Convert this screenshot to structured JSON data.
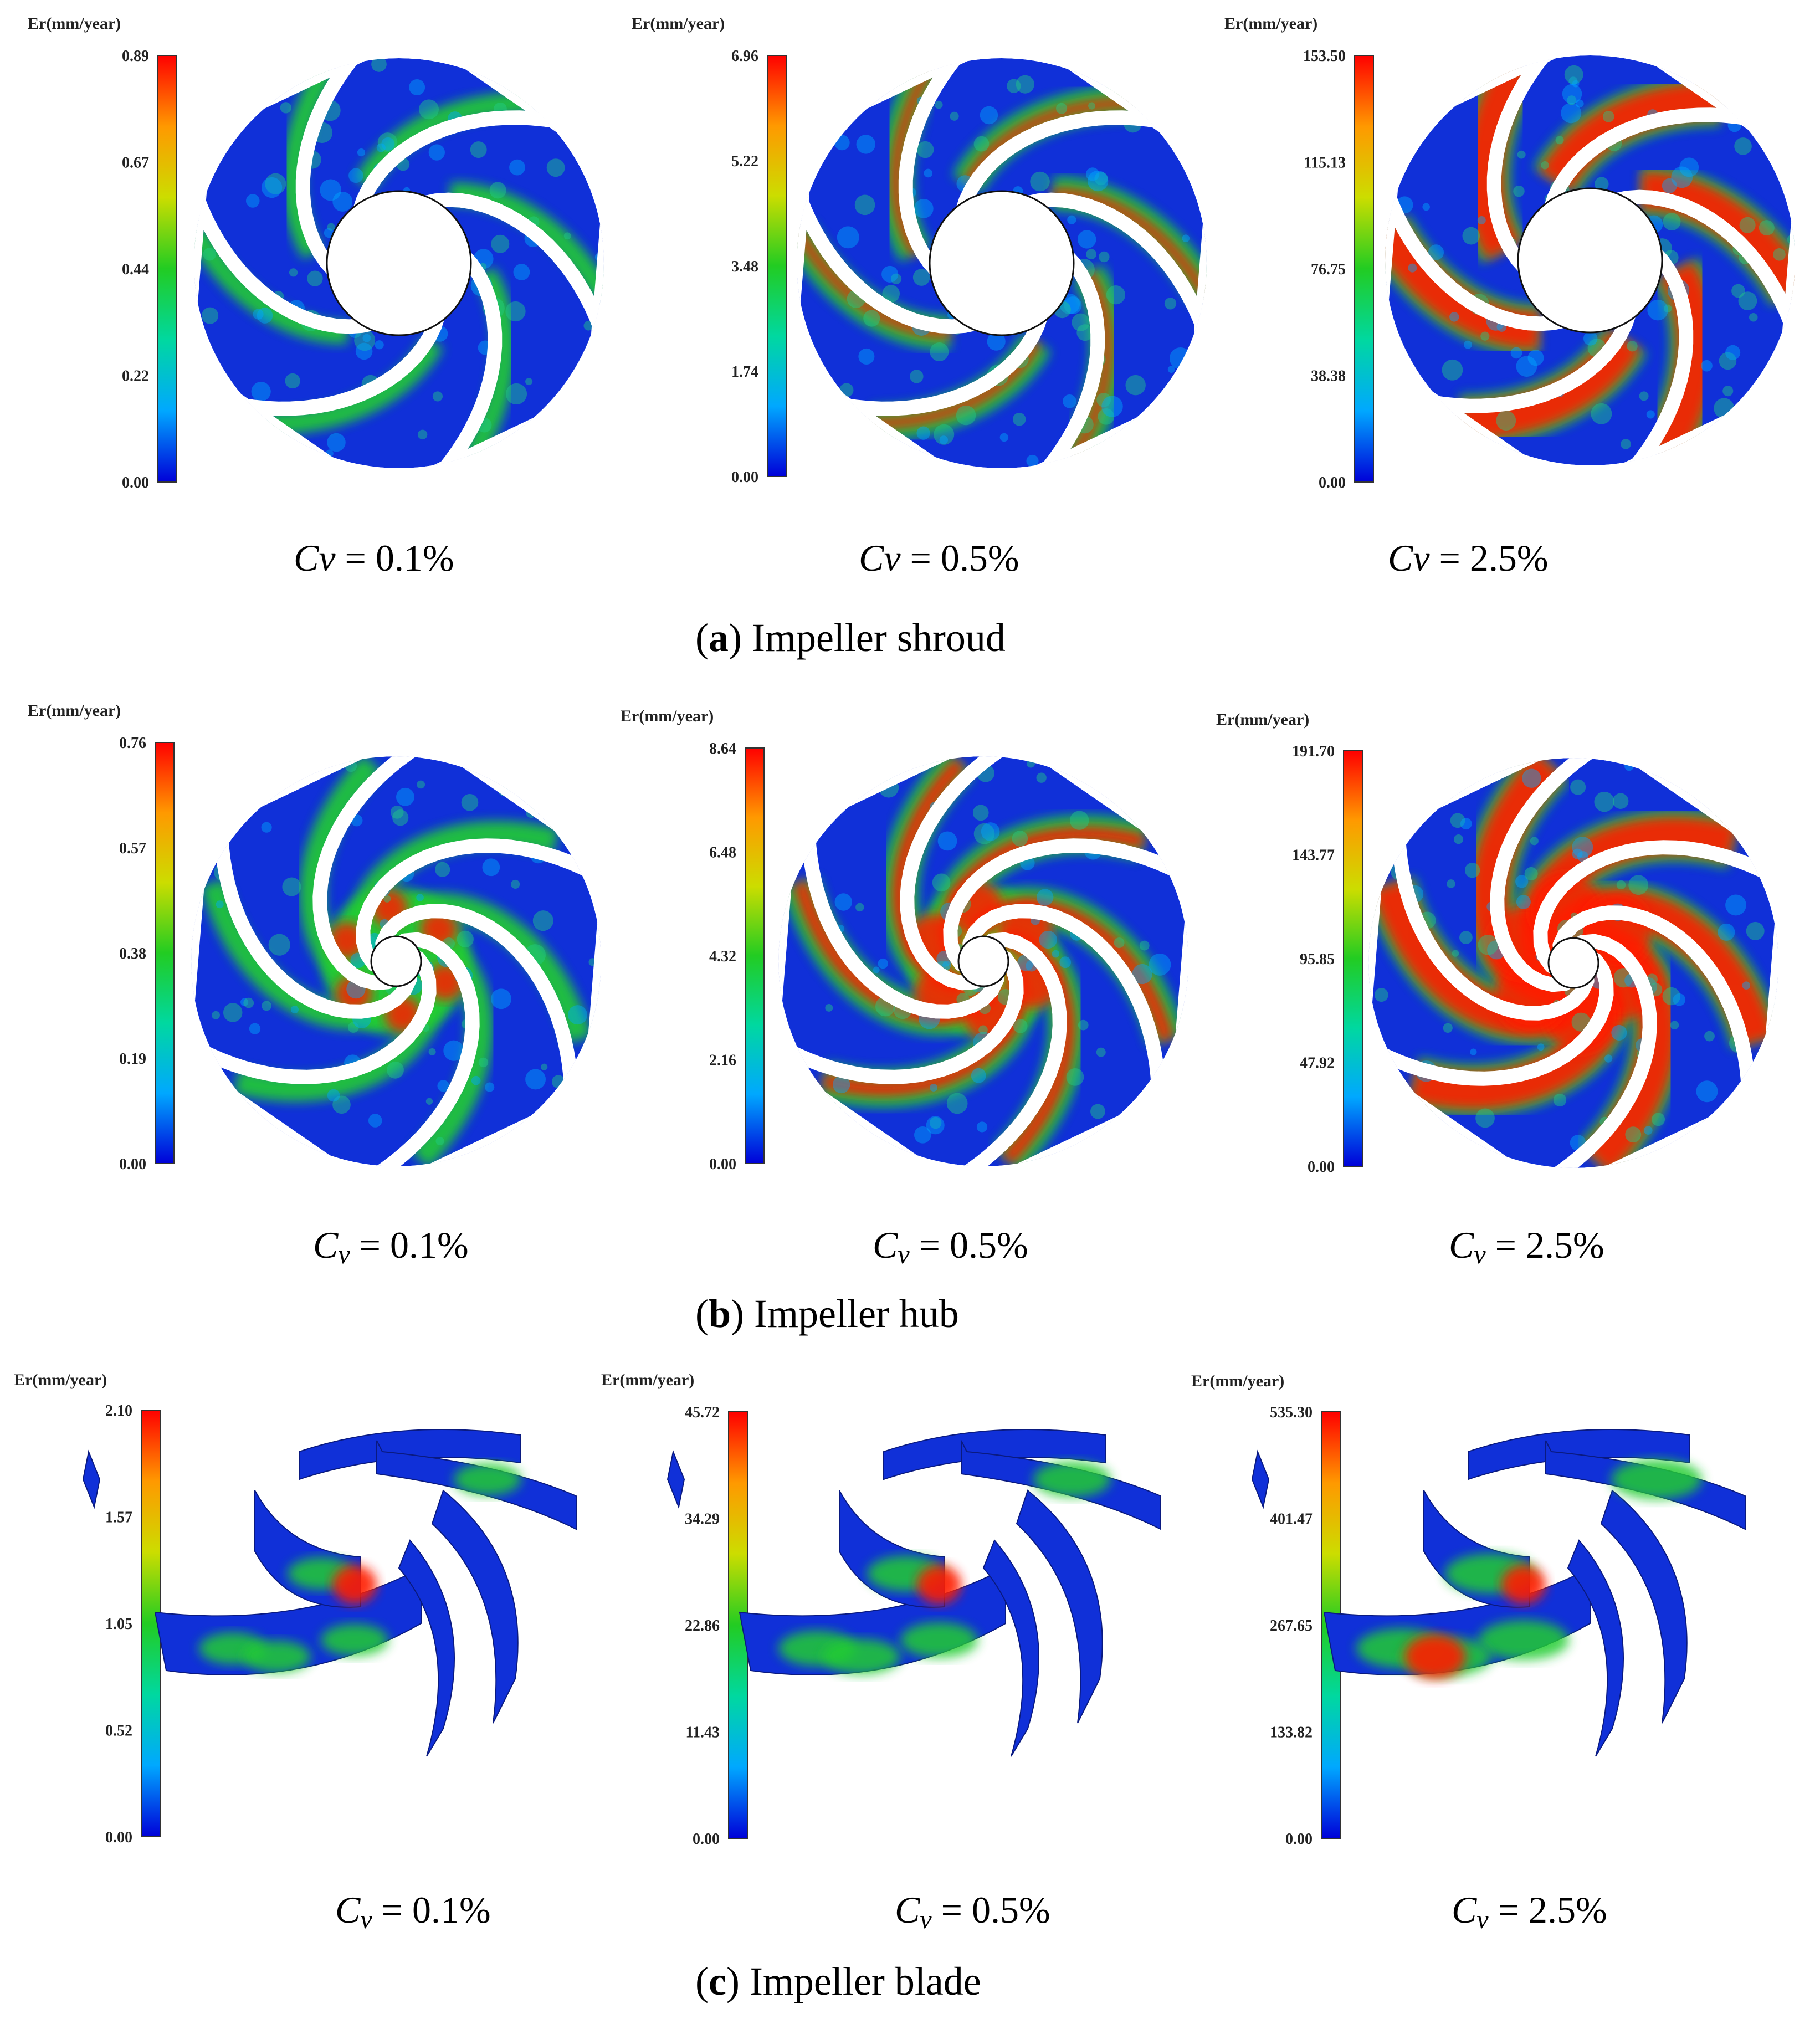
{
  "unit_label": "Er(mm/year)",
  "colormap": [
    "#0000d8",
    "#00a8ff",
    "#00d8a0",
    "#22cc22",
    "#ccdd00",
    "#ff9900",
    "#ff0000"
  ],
  "colors": {
    "blade_gap": "#ffffff",
    "low": "#1030d8",
    "mid": "#22cc33",
    "high": "#ff1a00"
  },
  "rows": [
    {
      "caption": {
        "letter": "a",
        "open": "(",
        "close": ")",
        "text": " Impeller shroud"
      },
      "kind": "shroud",
      "panels": [
        {
          "ticks": [
            "0.89",
            "0.67",
            "0.44",
            "0.22",
            "0.00"
          ],
          "cv_symbol": "Cv",
          "cv_sub": "",
          "cv_text": " = 0.1%",
          "intensity": 0.15
        },
        {
          "ticks": [
            "6.96",
            "5.22",
            "3.48",
            "1.74",
            "0.00"
          ],
          "cv_symbol": "Cv",
          "cv_sub": "",
          "cv_text": " = 0.5%",
          "intensity": 0.45
        },
        {
          "ticks": [
            "153.50",
            "115.13",
            "76.75",
            "38.38",
            "0.00"
          ],
          "cv_symbol": "Cv",
          "cv_sub": "",
          "cv_text": " = 2.5%",
          "intensity": 0.9
        }
      ]
    },
    {
      "caption": {
        "letter": "b",
        "open": "(",
        "close": ")",
        "text": " Impeller hub"
      },
      "kind": "hub",
      "panels": [
        {
          "ticks": [
            "0.76",
            "0.57",
            "0.38",
            "0.19",
            "0.00"
          ],
          "cv_symbol": "C",
          "cv_sub": "v",
          "cv_text": " = 0.1%",
          "intensity": 0.25
        },
        {
          "ticks": [
            "8.64",
            "6.48",
            "4.32",
            "2.16",
            "0.00"
          ],
          "cv_symbol": "C",
          "cv_sub": "v",
          "cv_text": " = 0.5%",
          "intensity": 0.55
        },
        {
          "ticks": [
            "191.70",
            "143.77",
            "95.85",
            "47.92",
            "0.00"
          ],
          "cv_symbol": "C",
          "cv_sub": "v",
          "cv_text": " = 2.5%",
          "intensity": 0.9
        }
      ]
    },
    {
      "caption": {
        "letter": "c",
        "open": "(",
        "close": ")",
        "text": " Impeller blade"
      },
      "kind": "blade",
      "panels": [
        {
          "ticks": [
            "2.10",
            "1.57",
            "1.05",
            "0.52",
            "0.00"
          ],
          "cv_symbol": "C",
          "cv_sub": "v",
          "cv_text": " = 0.1%",
          "intensity": 0.35
        },
        {
          "ticks": [
            "45.72",
            "34.29",
            "22.86",
            "11.43",
            "0.00"
          ],
          "cv_symbol": "C",
          "cv_sub": "v",
          "cv_text": " = 0.5%",
          "intensity": 0.5
        },
        {
          "ticks": [
            "535.30",
            "401.47",
            "267.65",
            "133.82",
            "0.00"
          ],
          "cv_symbol": "C",
          "cv_sub": "v",
          "cv_text": " = 2.5%",
          "intensity": 0.7
        }
      ]
    }
  ]
}
